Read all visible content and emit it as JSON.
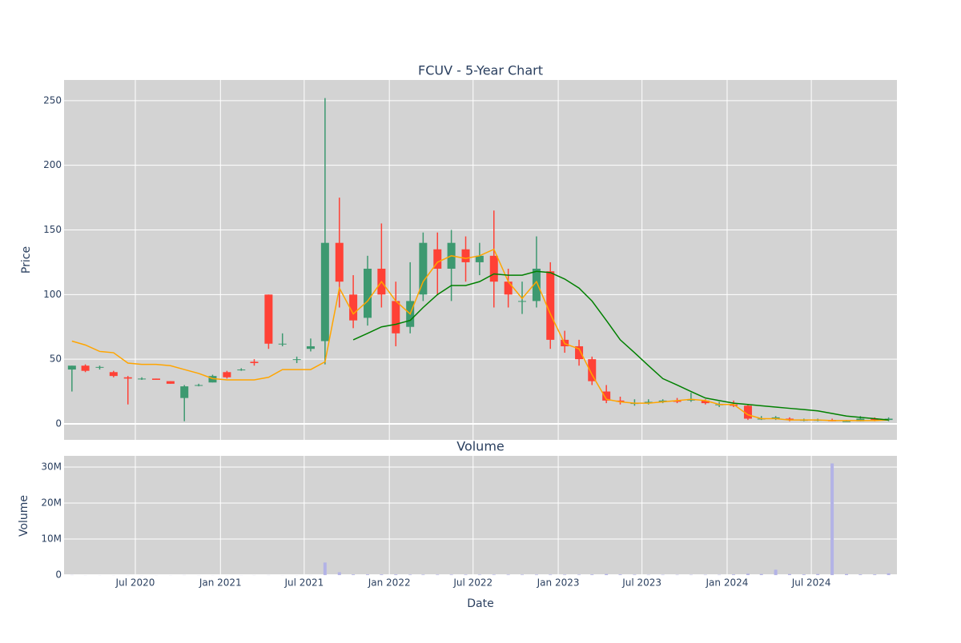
{
  "chart_data": [
    {
      "type": "candlestick",
      "title": "FCUV - 5-Year Chart",
      "ylabel": "Price",
      "x": [
        "2020-02-15",
        "2020-03-15",
        "2020-04-15",
        "2020-05-15",
        "2020-06-15",
        "2020-07-15",
        "2020-08-15",
        "2020-09-15",
        "2020-10-15",
        "2020-11-15",
        "2020-12-15",
        "2021-01-15",
        "2021-02-15",
        "2021-03-15",
        "2021-04-15",
        "2021-05-15",
        "2021-06-15",
        "2021-07-15",
        "2021-08-15",
        "2021-09-15",
        "2021-10-15",
        "2021-11-15",
        "2021-12-15",
        "2022-01-15",
        "2022-02-15",
        "2022-03-15",
        "2022-04-15",
        "2022-05-15",
        "2022-06-15",
        "2022-07-15",
        "2022-08-15",
        "2022-09-15",
        "2022-10-15",
        "2022-11-15",
        "2022-12-15",
        "2023-01-15",
        "2023-02-15",
        "2023-03-15",
        "2023-04-15",
        "2023-05-15",
        "2023-06-15",
        "2023-07-15",
        "2023-08-15",
        "2023-09-15",
        "2023-10-15",
        "2023-11-15",
        "2023-12-15",
        "2024-01-15",
        "2024-02-15",
        "2024-03-15",
        "2024-04-15",
        "2024-05-15",
        "2024-06-15",
        "2024-07-15",
        "2024-08-15",
        "2024-09-15",
        "2024-10-15",
        "2024-11-15",
        "2024-12-15"
      ],
      "open": [
        42,
        45,
        44,
        40,
        36,
        35,
        35,
        33,
        20,
        30,
        32,
        40,
        42,
        48,
        100,
        62,
        50,
        58,
        64,
        140,
        100,
        82,
        120,
        95,
        75,
        100,
        135,
        120,
        135,
        125,
        130,
        110,
        95,
        95,
        118,
        65,
        60,
        50,
        25,
        18,
        16,
        16,
        17,
        18,
        18,
        18,
        15,
        15,
        14,
        4,
        4,
        4,
        3,
        3,
        3,
        2,
        2,
        4,
        3
      ],
      "high": [
        45,
        46,
        45,
        41,
        37,
        36,
        35,
        33,
        30,
        31,
        38,
        41,
        43,
        50,
        100,
        70,
        52,
        66,
        252,
        175,
        115,
        130,
        155,
        110,
        125,
        148,
        148,
        150,
        145,
        140,
        165,
        120,
        110,
        145,
        125,
        72,
        65,
        52,
        30,
        21,
        19,
        19,
        19,
        20,
        24,
        19,
        17,
        18,
        15,
        6,
        6,
        5,
        4,
        4,
        4,
        3,
        6,
        5,
        5
      ],
      "low": [
        25,
        40,
        42,
        36,
        15,
        34,
        34,
        31,
        2,
        29,
        32,
        35,
        41,
        45,
        58,
        60,
        47,
        56,
        46,
        90,
        74,
        76,
        90,
        60,
        70,
        95,
        100,
        95,
        110,
        115,
        90,
        90,
        85,
        90,
        58,
        55,
        45,
        30,
        16,
        15,
        14,
        15,
        16,
        16,
        17,
        15,
        13,
        13,
        3,
        3,
        3,
        2,
        2,
        2,
        2,
        2,
        2,
        2,
        2
      ],
      "close": [
        45,
        41,
        44,
        37,
        35,
        35,
        34,
        31,
        29,
        30,
        37,
        36,
        42,
        47,
        62,
        62,
        50,
        60,
        140,
        110,
        80,
        120,
        100,
        70,
        95,
        140,
        120,
        140,
        125,
        130,
        110,
        100,
        95,
        120,
        65,
        60,
        50,
        33,
        18,
        17,
        16,
        17,
        18,
        17,
        19,
        16,
        15,
        14,
        4,
        4,
        5,
        3,
        3,
        3,
        2,
        2,
        4,
        3,
        4
      ],
      "increasing_color": "#3d9970",
      "decreasing_color": "#ff4136",
      "series": [
        {
          "color": "#ffa500",
          "values": [
            64,
            61,
            56,
            55,
            47,
            46,
            46,
            45,
            42,
            39,
            35,
            34,
            34,
            34,
            36,
            42,
            42,
            42,
            48,
            105,
            85,
            95,
            110,
            95,
            85,
            110,
            125,
            130,
            128,
            130,
            135,
            110,
            97,
            110,
            85,
            62,
            58,
            38,
            19,
            17,
            16,
            16,
            17,
            18,
            19,
            18,
            15,
            15,
            7,
            4,
            4,
            3,
            3,
            3,
            2.5,
            2.5,
            2.5,
            2.5,
            3
          ]
        },
        {
          "color": "#008000",
          "values": [
            null,
            null,
            null,
            null,
            null,
            null,
            null,
            null,
            null,
            null,
            null,
            null,
            null,
            null,
            null,
            null,
            null,
            null,
            null,
            null,
            65,
            70,
            75,
            77,
            80,
            90,
            100,
            107,
            107,
            110,
            116,
            115,
            115,
            118,
            117,
            112,
            105,
            95,
            80,
            65,
            55,
            45,
            35,
            30,
            25,
            20,
            18,
            16,
            15,
            14,
            13,
            12,
            11,
            10,
            8,
            6,
            5,
            4,
            3
          ]
        }
      ],
      "xlim": [
        "2020-01-29",
        "2025-01-02"
      ],
      "ylim": [
        -12.4,
        266
      ],
      "yticks": [
        0,
        50,
        100,
        150,
        200,
        250
      ],
      "grid": true
    },
    {
      "type": "bar",
      "title": "Volume",
      "xlabel": "Date",
      "ylabel": "Volume",
      "color": "#b3b3e6",
      "x": [
        "2020-02-15",
        "2020-03-15",
        "2020-04-15",
        "2020-05-15",
        "2020-06-15",
        "2020-07-15",
        "2020-08-15",
        "2020-09-15",
        "2020-10-15",
        "2020-11-15",
        "2020-12-15",
        "2021-01-15",
        "2021-02-15",
        "2021-03-15",
        "2021-04-15",
        "2021-05-15",
        "2021-06-15",
        "2021-07-15",
        "2021-08-15",
        "2021-09-15",
        "2021-10-15",
        "2021-11-15",
        "2021-12-15",
        "2022-01-15",
        "2022-02-15",
        "2022-03-15",
        "2022-04-15",
        "2022-05-15",
        "2022-06-15",
        "2022-07-15",
        "2022-08-15",
        "2022-09-15",
        "2022-10-15",
        "2022-11-15",
        "2022-12-15",
        "2023-01-15",
        "2023-02-15",
        "2023-03-15",
        "2023-04-15",
        "2023-05-15",
        "2023-06-15",
        "2023-07-15",
        "2023-08-15",
        "2023-09-15",
        "2023-10-15",
        "2023-11-15",
        "2023-12-15",
        "2024-01-15",
        "2024-02-15",
        "2024-03-15",
        "2024-04-15",
        "2024-05-15",
        "2024-06-15",
        "2024-07-15",
        "2024-08-15",
        "2024-09-15",
        "2024-10-15",
        "2024-11-15",
        "2024-12-15"
      ],
      "values": [
        50000,
        20000,
        20000,
        20000,
        30000,
        20000,
        20000,
        20000,
        40000,
        20000,
        20000,
        20000,
        20000,
        30000,
        40000,
        20000,
        20000,
        30000,
        3500000,
        800000,
        200000,
        200000,
        200000,
        200000,
        150000,
        150000,
        150000,
        150000,
        150000,
        150000,
        150000,
        150000,
        150000,
        150000,
        150000,
        150000,
        150000,
        200000,
        300000,
        200000,
        150000,
        100000,
        100000,
        100000,
        100000,
        100000,
        100000,
        200000,
        400000,
        300000,
        1500000,
        300000,
        200000,
        300000,
        31000000,
        300000,
        200000,
        200000,
        500000
      ],
      "xlim": [
        "2020-01-29",
        "2025-01-02"
      ],
      "xticks": [
        {
          "value": "2020-07-01",
          "label": "Jul 2020"
        },
        {
          "value": "2021-01-01",
          "label": "Jan 2021"
        },
        {
          "value": "2021-07-01",
          "label": "Jul 2021"
        },
        {
          "value": "2022-01-01",
          "label": "Jan 2022"
        },
        {
          "value": "2022-07-01",
          "label": "Jul 2022"
        },
        {
          "value": "2023-01-01",
          "label": "Jan 2023"
        },
        {
          "value": "2023-07-01",
          "label": "Jul 2023"
        },
        {
          "value": "2024-01-01",
          "label": "Jan 2024"
        },
        {
          "value": "2024-07-01",
          "label": "Jul 2024"
        }
      ],
      "ylim": [
        -200000,
        33100000
      ],
      "yticks": [
        0,
        {
          "value": 10000000,
          "label": "10M"
        },
        {
          "value": 20000000,
          "label": "20M"
        },
        {
          "value": 30000000,
          "label": "30M"
        }
      ],
      "grid": true
    }
  ]
}
